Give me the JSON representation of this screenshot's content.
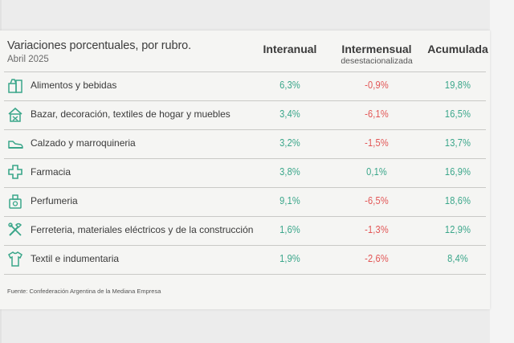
{
  "title": "Variaciones porcentuales, por rubro.",
  "subtitle": "Abril 2025",
  "columns": [
    {
      "label": "Interanual",
      "sub": ""
    },
    {
      "label": "Intermensual",
      "sub": "desestacionalizada"
    },
    {
      "label": "Acumulada",
      "sub": ""
    }
  ],
  "colors": {
    "positive": "#3aa68a",
    "negative": "#e25555",
    "icon": "#3aa68a"
  },
  "chart_data": {
    "type": "table",
    "title": "Variaciones porcentuales, por rubro.",
    "subtitle": "Abril 2025",
    "columns": [
      "Interanual",
      "Intermensual desestacionalizada",
      "Acumulada"
    ],
    "rows": [
      {
        "category": "Alimentos y bebidas",
        "icon": "grocery-icon",
        "values": [
          "6,3%",
          "-0,9%",
          "19,8%"
        ]
      },
      {
        "category": "Bazar, decoración, textiles de hogar y muebles",
        "icon": "home-goods-icon",
        "values": [
          "3,4%",
          "-6,1%",
          "16,5%"
        ]
      },
      {
        "category": "Calzado y marroquineria",
        "icon": "shoe-icon",
        "values": [
          "3,2%",
          "-1,5%",
          "13,7%"
        ]
      },
      {
        "category": "Farmacia",
        "icon": "pharmacy-cross-icon",
        "values": [
          "3,8%",
          "0,1%",
          "16,9%"
        ]
      },
      {
        "category": "Perfumeria",
        "icon": "perfume-icon",
        "values": [
          "9,1%",
          "-6,5%",
          "18,6%"
        ]
      },
      {
        "category": "Ferreteria, materiales eléctricos y de la construcción",
        "icon": "tools-icon",
        "values": [
          "1,6%",
          "-1,3%",
          "12,9%"
        ]
      },
      {
        "category": "Textil e indumentaria",
        "icon": "tshirt-icon",
        "values": [
          "1,9%",
          "-2,6%",
          "8,4%"
        ]
      }
    ]
  },
  "footer": "Fuente: Confederación Argentina de la Mediana Empresa"
}
